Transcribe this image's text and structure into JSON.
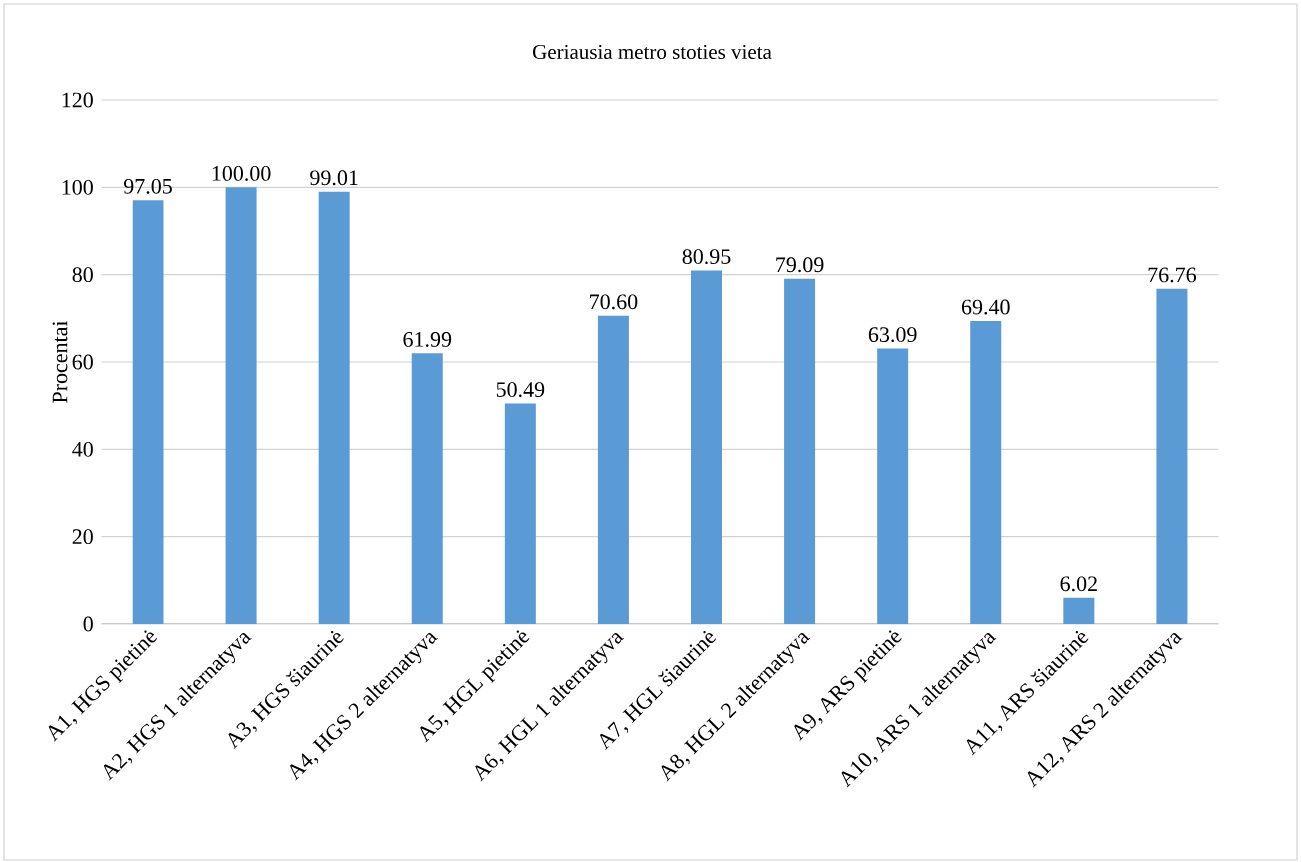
{
  "chart_data": {
    "type": "bar",
    "title": "Geriausia metro stoties vieta",
    "ylabel": "Procentai",
    "categories": [
      "A1, HGS pietinė",
      "A2, HGS 1 alternatyva",
      "A3, HGS šiaurinė",
      "A4, HGS 2 alternatyva",
      "A5, HGL pietinė",
      "A6, HGL 1 alternatyva",
      "A7, HGL šiaurinė",
      "A8, HGL 2 alternatyva",
      "A9, ARS pietinė",
      "A10, ARS 1 alternatyva",
      "A11, ARS šiaurinė",
      "A12, ARS 2 alternatyva"
    ],
    "values": [
      97.05,
      100.0,
      99.01,
      61.99,
      50.49,
      70.6,
      80.95,
      79.09,
      63.09,
      69.4,
      6.02,
      76.76
    ],
    "value_labels": [
      "97.05",
      "100.00",
      "99.01",
      "61.99",
      "50.49",
      "70.60",
      "80.95",
      "79.09",
      "63.09",
      "69.40",
      "6.02",
      "76.76"
    ],
    "color": "#5b9bd5",
    "ylim": [
      0,
      120
    ],
    "yticks": [
      0,
      20,
      40,
      60,
      80,
      100,
      120
    ],
    "grid": "y"
  }
}
